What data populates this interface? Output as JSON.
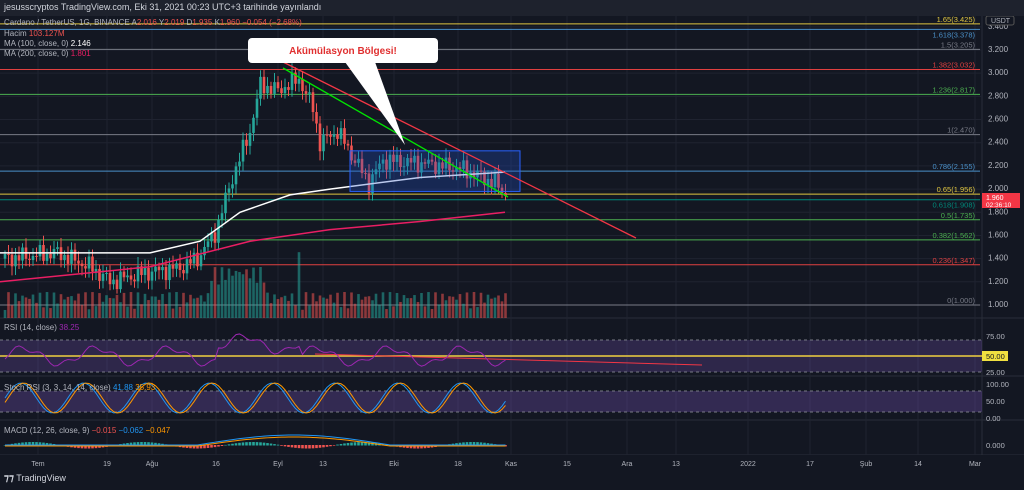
{
  "header": "jesusscryptos TradingView.com, Eki 31, 2021 00:23 UTC+3 tarihinde yayınlandı",
  "symbol": {
    "name": "Cardano / TetherUS, 1G, BINANCE",
    "o_label": "A",
    "o": "2.016",
    "h_label": "Y",
    "h": "2.019",
    "l_label": "D",
    "l": "1.935",
    "c_label": "K",
    "c": "1.960",
    "chg": "−0.054 (−2.68%)"
  },
  "volume": {
    "label": "Hacim",
    "value": "103.127M"
  },
  "ma100": {
    "label": "MA (100, close, 0)",
    "value": "2.146"
  },
  "ma200": {
    "label": "MA (200, close, 0)",
    "value": "1.801"
  },
  "rsi": {
    "label": "RSI (14, close)",
    "value": "38.25",
    "ticks": [
      "75.00",
      "50.00",
      "25.00"
    ]
  },
  "stoch": {
    "label": "Stoch RSI (3, 3, 14, 14, close)",
    "k": "41.88",
    "d": "35.93",
    "ticks": [
      "100.00",
      "50.00",
      "0.00"
    ]
  },
  "macd": {
    "label": "MACD (12, 26, close, 9)",
    "hist": "−0.015",
    "macd": "−0.062",
    "signal": "−0.047",
    "ticks": [
      "0.000"
    ]
  },
  "callout": "Akümülasyon Bölgesi!",
  "currency": "USDT",
  "last_price": {
    "price": "1.960",
    "countdown": "02:36:10"
  },
  "price_ticks": [
    "3.400",
    "3.200",
    "3.000",
    "2.800",
    "2.600",
    "2.400",
    "2.200",
    "2.000",
    "1.800",
    "1.600",
    "1.400",
    "1.200",
    "1.000"
  ],
  "fib": [
    {
      "label": "1.65(3.425)",
      "p": 3.425,
      "color": "#e0c640"
    },
    {
      "label": "1.618(3.378)",
      "p": 3.378,
      "color": "#4a90c8"
    },
    {
      "label": "1.5(3.205)",
      "p": 3.205,
      "color": "#787b86"
    },
    {
      "label": "1.382(3.032)",
      "p": 3.032,
      "color": "#e04040"
    },
    {
      "label": "1.236(2.817)",
      "p": 2.817,
      "color": "#4caf50"
    },
    {
      "label": "1(2.470)",
      "p": 2.47,
      "color": "#787b86"
    },
    {
      "label": "0.786(2.155)",
      "p": 2.155,
      "color": "#4a90c8"
    },
    {
      "label": "0.65(1.956)",
      "p": 1.956,
      "color": "#e0c640"
    },
    {
      "label": "0.618(1.908)",
      "p": 1.908,
      "color": "#00897b"
    },
    {
      "label": "0.5(1.735)",
      "p": 1.735,
      "color": "#4caf50"
    },
    {
      "label": "0.382(1.562)",
      "p": 1.562,
      "color": "#4caf50"
    },
    {
      "label": "0.236(1.347)",
      "p": 1.347,
      "color": "#e04040"
    },
    {
      "label": "0(1.000)",
      "p": 1.0,
      "color": "#787b86"
    }
  ],
  "time_labels": [
    "Tem",
    "19",
    "Ağu",
    "16",
    "Eyl",
    "13",
    "Eki",
    "18",
    "Kas",
    "15",
    "Ara",
    "13",
    "2022",
    "17",
    "Şub",
    "14",
    "Mar"
  ],
  "price_path": [
    [
      0,
      1.4
    ],
    [
      15,
      1.45
    ],
    [
      25,
      1.32
    ],
    [
      30,
      1.2
    ],
    [
      40,
      1.28
    ],
    [
      50,
      1.32
    ],
    [
      55,
      1.4
    ],
    [
      60,
      1.62
    ],
    [
      65,
      2.1
    ],
    [
      70,
      2.5
    ],
    [
      73,
      2.9
    ],
    [
      78,
      2.85
    ],
    [
      84,
      2.95
    ],
    [
      88,
      2.7
    ],
    [
      90,
      2.4
    ],
    [
      95,
      2.5
    ],
    [
      100,
      2.25
    ],
    [
      104,
      2.05
    ],
    [
      108,
      2.25
    ],
    [
      120,
      2.22
    ],
    [
      130,
      2.18
    ],
    [
      135,
      2.12
    ],
    [
      140,
      2.05
    ],
    [
      143,
      1.96
    ]
  ],
  "brand": "TradingView",
  "colors": {
    "up": "#26a69a",
    "down": "#ef5350",
    "ma100": "#ffffff",
    "ma200": "#e91e63"
  }
}
